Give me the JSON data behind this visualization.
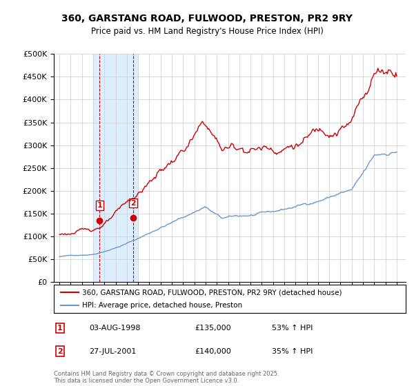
{
  "title": "360, GARSTANG ROAD, FULWOOD, PRESTON, PR2 9RY",
  "subtitle": "Price paid vs. HM Land Registry's House Price Index (HPI)",
  "legend_line1": "360, GARSTANG ROAD, FULWOOD, PRESTON, PR2 9RY (detached house)",
  "legend_line2": "HPI: Average price, detached house, Preston",
  "footnote": "Contains HM Land Registry data © Crown copyright and database right 2025.\nThis data is licensed under the Open Government Licence v3.0.",
  "transaction1_label": "1",
  "transaction1_date": "03-AUG-1998",
  "transaction1_price": "£135,000",
  "transaction1_hpi": "53% ↑ HPI",
  "transaction2_label": "2",
  "transaction2_date": "27-JUL-2001",
  "transaction2_price": "£140,000",
  "transaction2_hpi": "35% ↑ HPI",
  "ylim": [
    0,
    500000
  ],
  "yticks": [
    0,
    50000,
    100000,
    150000,
    200000,
    250000,
    300000,
    350000,
    400000,
    450000,
    500000
  ],
  "red_color": "#cc0000",
  "blue_color": "#6699cc",
  "highlight_color": "#ddeeff",
  "shade_x1": 1998.0,
  "shade_x2": 2002.0,
  "marker1_x": 1998.58,
  "marker1_y": 135000,
  "marker2_x": 2001.56,
  "marker2_y": 140000,
  "background_color": "#ffffff",
  "xlim": [
    1994.5,
    2025.8
  ],
  "xtick_start": 1995,
  "xtick_end": 2026
}
